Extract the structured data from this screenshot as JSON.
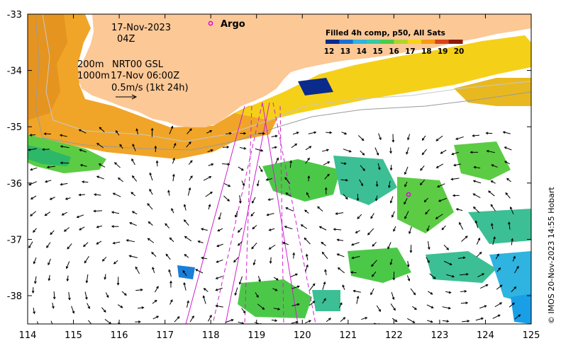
{
  "header": {
    "date": "17-Nov-2023",
    "hour": "04Z",
    "isobath_shallow": "200m",
    "isobath_deep": "1000m",
    "product": "NRT00 GSL",
    "current_time": "17-Nov 06:00Z",
    "scale_text": "0.5m/s (1kt 24h)"
  },
  "legend": {
    "argo_label": "Argo",
    "colorbar_title": "Filled 4h comp, p50, All Sats",
    "colorbar_ticks": [
      "12",
      "13",
      "14",
      "15",
      "16",
      "17",
      "18",
      "19",
      "20"
    ],
    "colorbar_colors": [
      "#0a2a8c",
      "#1a6fd6",
      "#2fb3e0",
      "#33c9a8",
      "#4ccc4c",
      "#b0d62a",
      "#f5d414",
      "#f59a14",
      "#d9421a",
      "#8a1a0a"
    ]
  },
  "axes": {
    "x_ticks": [
      "114",
      "115",
      "116",
      "117",
      "118",
      "119",
      "120",
      "121",
      "122",
      "123",
      "124",
      "125"
    ],
    "y_ticks": [
      "-33",
      "-34",
      "-35",
      "-36",
      "-37",
      "-38"
    ]
  },
  "credit": "© IMOS 20-Nov-2023 14:55 Hobart",
  "colors": {
    "land": "#fcc896",
    "argo": "#e000e0",
    "track": "#d020d0"
  }
}
